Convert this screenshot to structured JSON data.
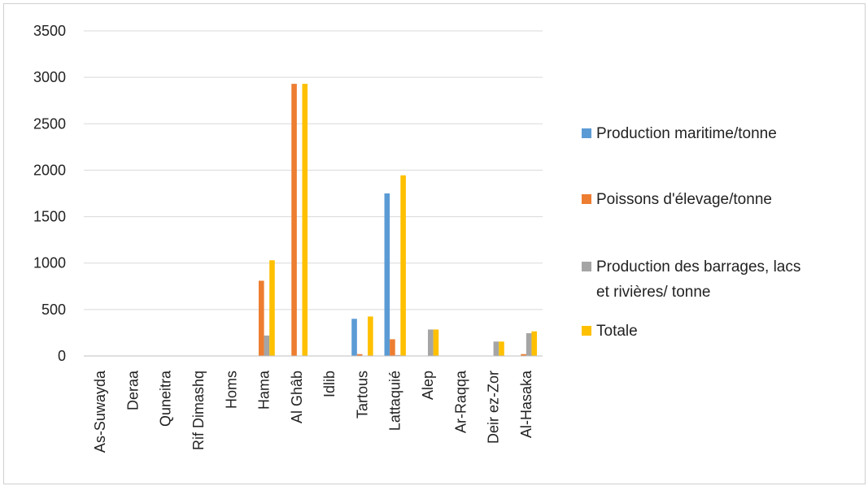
{
  "chart_data": {
    "type": "bar",
    "title": "",
    "xlabel": "",
    "ylabel": "",
    "ylim": [
      0,
      3500
    ],
    "yticks": [
      0,
      500,
      1000,
      1500,
      2000,
      2500,
      3000,
      3500
    ],
    "grid": true,
    "legend_position": "right",
    "categories": [
      "As-Suwayda",
      "Deraa",
      "Quneitra",
      "Rif Dimashq",
      "Homs",
      "Hama",
      "Al Ghâb",
      "Idlib",
      "Tartous",
      "Lattaquié",
      "Alep",
      "Ar-Raqqa",
      "Deir ez-Zor",
      "Al-Hasaka"
    ],
    "series": [
      {
        "name": "Production maritime/tonne",
        "color": "#5b9bd5",
        "values": [
          0,
          0,
          0,
          0,
          0,
          0,
          0,
          0,
          400,
          1750,
          0,
          0,
          0,
          0
        ]
      },
      {
        "name": "Poissons d'élevage/tonne",
        "color": "#ed7d31",
        "values": [
          0,
          0,
          0,
          0,
          0,
          810,
          2930,
          0,
          20,
          180,
          0,
          0,
          0,
          20
        ]
      },
      {
        "name": "Production des barrages, lacs et rivières/ tonne",
        "color": "#a5a5a5",
        "values": [
          0,
          0,
          0,
          0,
          0,
          220,
          0,
          0,
          0,
          10,
          285,
          0,
          155,
          245
        ]
      },
      {
        "name": "Totale",
        "color": "#ffc000",
        "values": [
          0,
          0,
          0,
          0,
          0,
          1030,
          2930,
          0,
          425,
          1945,
          285,
          0,
          155,
          265
        ]
      }
    ],
    "legend_lines": [
      [
        "Production maritime/tonne"
      ],
      [
        "Poissons d'élevage/tonne"
      ],
      [
        "Production des barrages, lacs",
        "et rivières/ tonne"
      ],
      [
        "Totale"
      ]
    ]
  }
}
